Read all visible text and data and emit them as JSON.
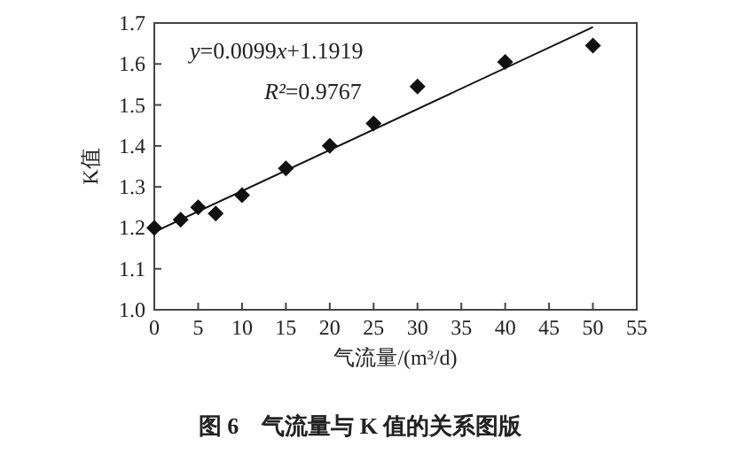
{
  "chart_data": {
    "type": "scatter",
    "xlabel": "气流量/(m³/d)",
    "ylabel": "K值",
    "annotations": [
      "y=0.0099x+1.1919",
      "R²=0.9767",
      "图 6　气流量与 K 值的关系图版"
    ],
    "xlim": [
      0,
      55
    ],
    "xticks": [
      0,
      5,
      10,
      15,
      20,
      25,
      30,
      35,
      40,
      45,
      50,
      55
    ],
    "ylim": [
      1.0,
      1.7
    ],
    "yticks": [
      {
        "value": 1.0,
        "label": "1.0"
      },
      1.1,
      1.2,
      1.3,
      1.4,
      1.5,
      1.6,
      1.7
    ],
    "grid": false,
    "series": [
      {
        "marker": "diamond",
        "color": "#111111",
        "x": [
          0,
          3,
          5,
          7,
          10,
          15,
          20,
          25,
          30,
          40,
          50
        ],
        "values": [
          1.2,
          1.22,
          1.25,
          1.235,
          1.28,
          1.345,
          1.4,
          1.455,
          1.545,
          1.605,
          1.645
        ]
      },
      {
        "type": "line",
        "color": "#111111",
        "line_style": "solid",
        "x": [
          0,
          50
        ],
        "values": [
          1.19,
          1.69
        ]
      }
    ]
  }
}
